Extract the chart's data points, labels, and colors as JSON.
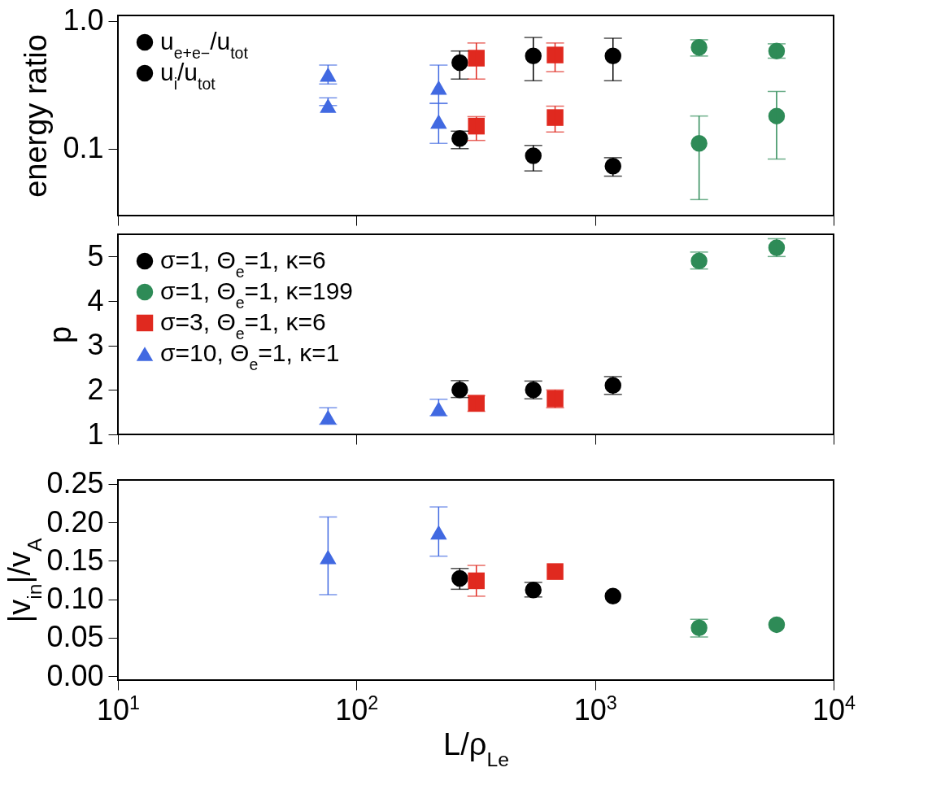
{
  "chart_data": [
    {
      "type": "scatter",
      "ylabel": "energy ratio",
      "log": "xy",
      "xlim": [
        10,
        10000
      ],
      "xticks": [
        10,
        100,
        1000,
        10000
      ],
      "ylim": [
        0.03,
        1.1
      ],
      "yticks": [
        0.1,
        {
          "value": 1,
          "label": "1.0"
        }
      ],
      "tick_labels": "y",
      "grid": false,
      "legend": "top left",
      "series": [
        {
          "name": "u$_{e+e−}$/u$_{tot}$",
          "color": "#000000",
          "marker": "circle",
          "x": [
            271,
            551,
            1189
          ],
          "values": [
            0.12,
            0.088,
            0.073
          ],
          "errors": [
            [
              0.1,
              0.137
            ],
            [
              0.067,
              0.106
            ],
            [
              0.061,
              0.085
            ]
          ]
        },
        {
          "name": "u$_{i}$/u$_{tot}$",
          "color": "#000000",
          "marker": "circle",
          "x": [
            271,
            551,
            1189
          ],
          "values": [
            0.47,
            0.53,
            0.53
          ],
          "errors": [
            [
              0.35,
              0.58
            ],
            [
              0.34,
              0.74
            ],
            [
              0.34,
              0.73
            ]
          ]
        },
        {
          "color": "#2e8b57",
          "marker": "circle",
          "x": [
            2730,
            5770
          ],
          "values": [
            0.62,
            0.58
          ],
          "errors": [
            [
              0.53,
              0.71
            ],
            [
              0.51,
              0.66
            ]
          ]
        },
        {
          "color": "#2e8b57",
          "marker": "circle",
          "x": [
            2730,
            5770
          ],
          "values": [
            0.11,
            0.18
          ],
          "errors": [
            [
              0.04,
              0.18
            ],
            [
              0.083,
              0.28
            ]
          ]
        },
        {
          "color": "#e0291f",
          "marker": "square",
          "x": [
            318,
            680
          ],
          "values": [
            0.15,
            0.175
          ],
          "errors": [
            [
              0.116,
              0.178
            ],
            [
              0.135,
              0.215
            ]
          ]
        },
        {
          "color": "#e0291f",
          "marker": "square",
          "x": [
            318,
            680
          ],
          "values": [
            0.51,
            0.54
          ],
          "errors": [
            [
              0.35,
              0.67
            ],
            [
              0.4,
              0.67
            ]
          ]
        },
        {
          "color": "#4169e1",
          "marker": "triangle",
          "x": [
            76,
            221
          ],
          "values": [
            0.217,
            0.163
          ],
          "errors": [
            [
              0.217,
              0.25
            ],
            [
              0.11,
              0.226
            ]
          ]
        },
        {
          "color": "#4169e1",
          "marker": "triangle",
          "x": [
            76,
            221
          ],
          "values": [
            0.38,
            0.3
          ],
          "errors": [
            [
              0.32,
              0.45
            ],
            [
              0.226,
              0.45
            ]
          ]
        }
      ]
    },
    {
      "type": "scatter",
      "ylabel": "p",
      "log": "x",
      "xlim": [
        10,
        10000
      ],
      "xticks": [
        10,
        100,
        1000,
        10000
      ],
      "ylim": [
        1,
        5.5
      ],
      "yticks": [
        1,
        2,
        3,
        4,
        5
      ],
      "tick_labels": "y",
      "grid": false,
      "legend": "top left",
      "series": [
        {
          "name": "σ=1, Θ$_{e}$=1, κ=6",
          "color": "#000000",
          "marker": "circle",
          "x": [
            271,
            551,
            1189
          ],
          "values": [
            2.0,
            2.0,
            2.1
          ],
          "errors": [
            [
              1.83,
              2.21
            ],
            [
              1.8,
              2.2
            ],
            [
              1.9,
              2.3
            ]
          ]
        },
        {
          "name": "σ=1, Θ$_{e}$=1, κ=199",
          "color": "#2e8b57",
          "marker": "circle",
          "x": [
            2730,
            5770
          ],
          "values": [
            4.9,
            5.2
          ],
          "errors": [
            [
              4.72,
              5.1
            ],
            [
              5.0,
              5.4
            ]
          ]
        },
        {
          "name": "σ=3, Θ$_{e}$=1, κ=6",
          "color": "#e0291f",
          "marker": "square",
          "x": [
            318,
            680
          ],
          "values": [
            1.7,
            1.8
          ],
          "errors": [
            [
              1.52,
              1.87
            ],
            [
              1.6,
              2.0
            ]
          ]
        },
        {
          "name": "σ=10, Θ$_{e}$=1, κ=1",
          "color": "#4169e1",
          "marker": "triangle",
          "x": [
            76,
            221
          ],
          "values": [
            1.39,
            1.58
          ],
          "errors": [
            [
              1.23,
              1.6
            ],
            [
              1.42,
              1.79
            ]
          ]
        }
      ]
    },
    {
      "type": "scatter",
      "xlabel": "L/ρ$_{Le}$",
      "ylabel": "|v$_{in}$|/v$_{A}$",
      "log": "x",
      "xlim": [
        10,
        10000
      ],
      "xticks": [
        {
          "value": 10,
          "label": "10$^{1}$"
        },
        {
          "value": 100,
          "label": "10$^{2}$"
        },
        {
          "value": 1000,
          "label": "10$^{3}$"
        },
        {
          "value": 10000,
          "label": "10$^{4}$"
        }
      ],
      "ylim": [
        -0.005,
        0.255
      ],
      "yticks": [
        {
          "value": 0,
          "label": "0.00"
        },
        {
          "value": 0.05,
          "label": "0.05"
        },
        {
          "value": 0.1,
          "label": "0.10"
        },
        {
          "value": 0.15,
          "label": "0.15"
        },
        {
          "value": 0.2,
          "label": "0.20"
        },
        {
          "value": 0.25,
          "label": "0.25"
        }
      ],
      "grid": false,
      "series": [
        {
          "color": "#000000",
          "marker": "circle",
          "x": [
            271,
            551,
            1189
          ],
          "values": [
            0.127,
            0.112,
            0.104
          ],
          "errors": [
            [
              0.113,
              0.14
            ],
            [
              0.103,
              0.122
            ],
            null
          ]
        },
        {
          "color": "#2e8b57",
          "marker": "circle",
          "x": [
            2730,
            5770
          ],
          "values": [
            0.063,
            0.067
          ],
          "errors": [
            [
              0.051,
              0.074
            ],
            null
          ]
        },
        {
          "color": "#e0291f",
          "marker": "square",
          "x": [
            318,
            680
          ],
          "values": [
            0.124,
            0.136
          ],
          "errors": [
            [
              0.104,
              0.144
            ],
            null
          ]
        },
        {
          "color": "#4169e1",
          "marker": "triangle",
          "x": [
            76,
            221
          ],
          "values": [
            0.155,
            0.187
          ],
          "errors": [
            [
              0.106,
              0.207
            ],
            [
              0.156,
              0.22
            ]
          ]
        }
      ]
    }
  ]
}
